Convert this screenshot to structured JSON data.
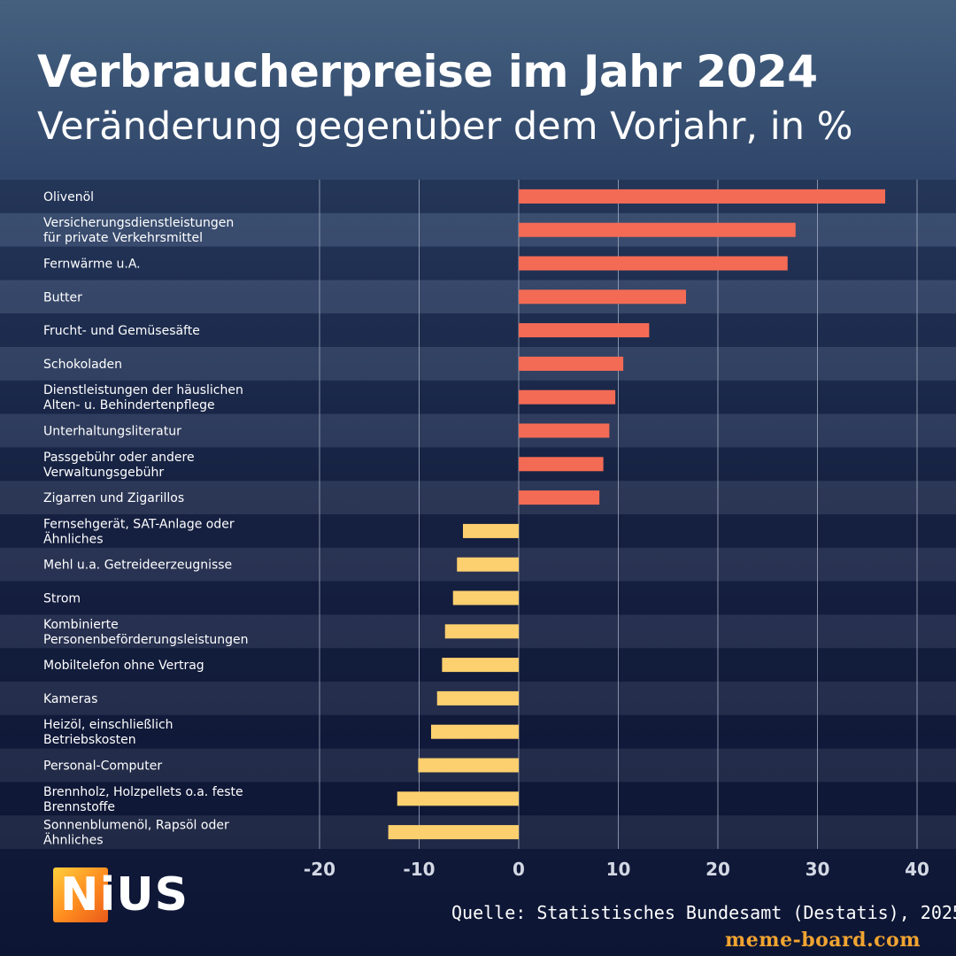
{
  "title": "Verbraucherpreise im Jahr 2024",
  "subtitle": "Veränderung gegenüber dem Vorjahr, in %",
  "source": "Quelle: Statistisches Bundesamt (Destatis), 2025",
  "logo_text": "NiUS",
  "watermark": "meme-board.com",
  "colors": {
    "positive": "#f46b55",
    "negative": "#fdd06f",
    "gridline": "#a9b3c6"
  },
  "chart_data": {
    "type": "bar",
    "orientation": "horizontal",
    "title": "Verbraucherpreise im Jahr 2024",
    "subtitle": "Veränderung gegenüber dem Vorjahr, in %",
    "xlim": [
      -20,
      40
    ],
    "xticks": [
      -20,
      -10,
      0,
      10,
      20,
      30,
      40
    ],
    "xtick_labels": [
      "-20",
      "-10",
      "0",
      "10",
      "20",
      "30",
      "40"
    ],
    "grid": "vertical",
    "categories": [
      [
        "Olivenöl"
      ],
      [
        "Versicherungsdienstleistungen",
        "für private Verkehrsmittel"
      ],
      [
        "Fernwärme u.A."
      ],
      [
        "Butter"
      ],
      [
        "Frucht- und Gemüsesäfte"
      ],
      [
        "Schokoladen"
      ],
      [
        "Dienstleistungen der häuslichen",
        "Alten- u. Behindertenpflege"
      ],
      [
        "Unterhaltungsliteratur"
      ],
      [
        "Passgebühr oder andere",
        "Verwaltungsgebühr"
      ],
      [
        "Zigarren und Zigarillos"
      ],
      [
        "Fernsehgerät, SAT-Anlage oder",
        "Ähnliches"
      ],
      [
        "Mehl u.a. Getreideerzeugnisse"
      ],
      [
        "Strom"
      ],
      [
        "Kombinierte",
        "Personenbeförderungsleistungen"
      ],
      [
        "Mobiltelefon ohne Vertrag"
      ],
      [
        "Kameras"
      ],
      [
        "Heizöl, einschließlich",
        "Betriebskosten"
      ],
      [
        "Personal-Computer"
      ],
      [
        "Brennholz, Holzpellets o.a. feste",
        "Brennstoffe"
      ],
      [
        "Sonnenblumenöl, Rapsöl oder",
        "Ähnliches"
      ]
    ],
    "values": [
      36.8,
      27.8,
      27.0,
      16.8,
      13.1,
      10.5,
      9.7,
      9.1,
      8.5,
      8.1,
      -5.6,
      -6.2,
      -6.6,
      -7.4,
      -7.7,
      -8.2,
      -8.8,
      -10.1,
      -12.2,
      -13.1
    ]
  }
}
